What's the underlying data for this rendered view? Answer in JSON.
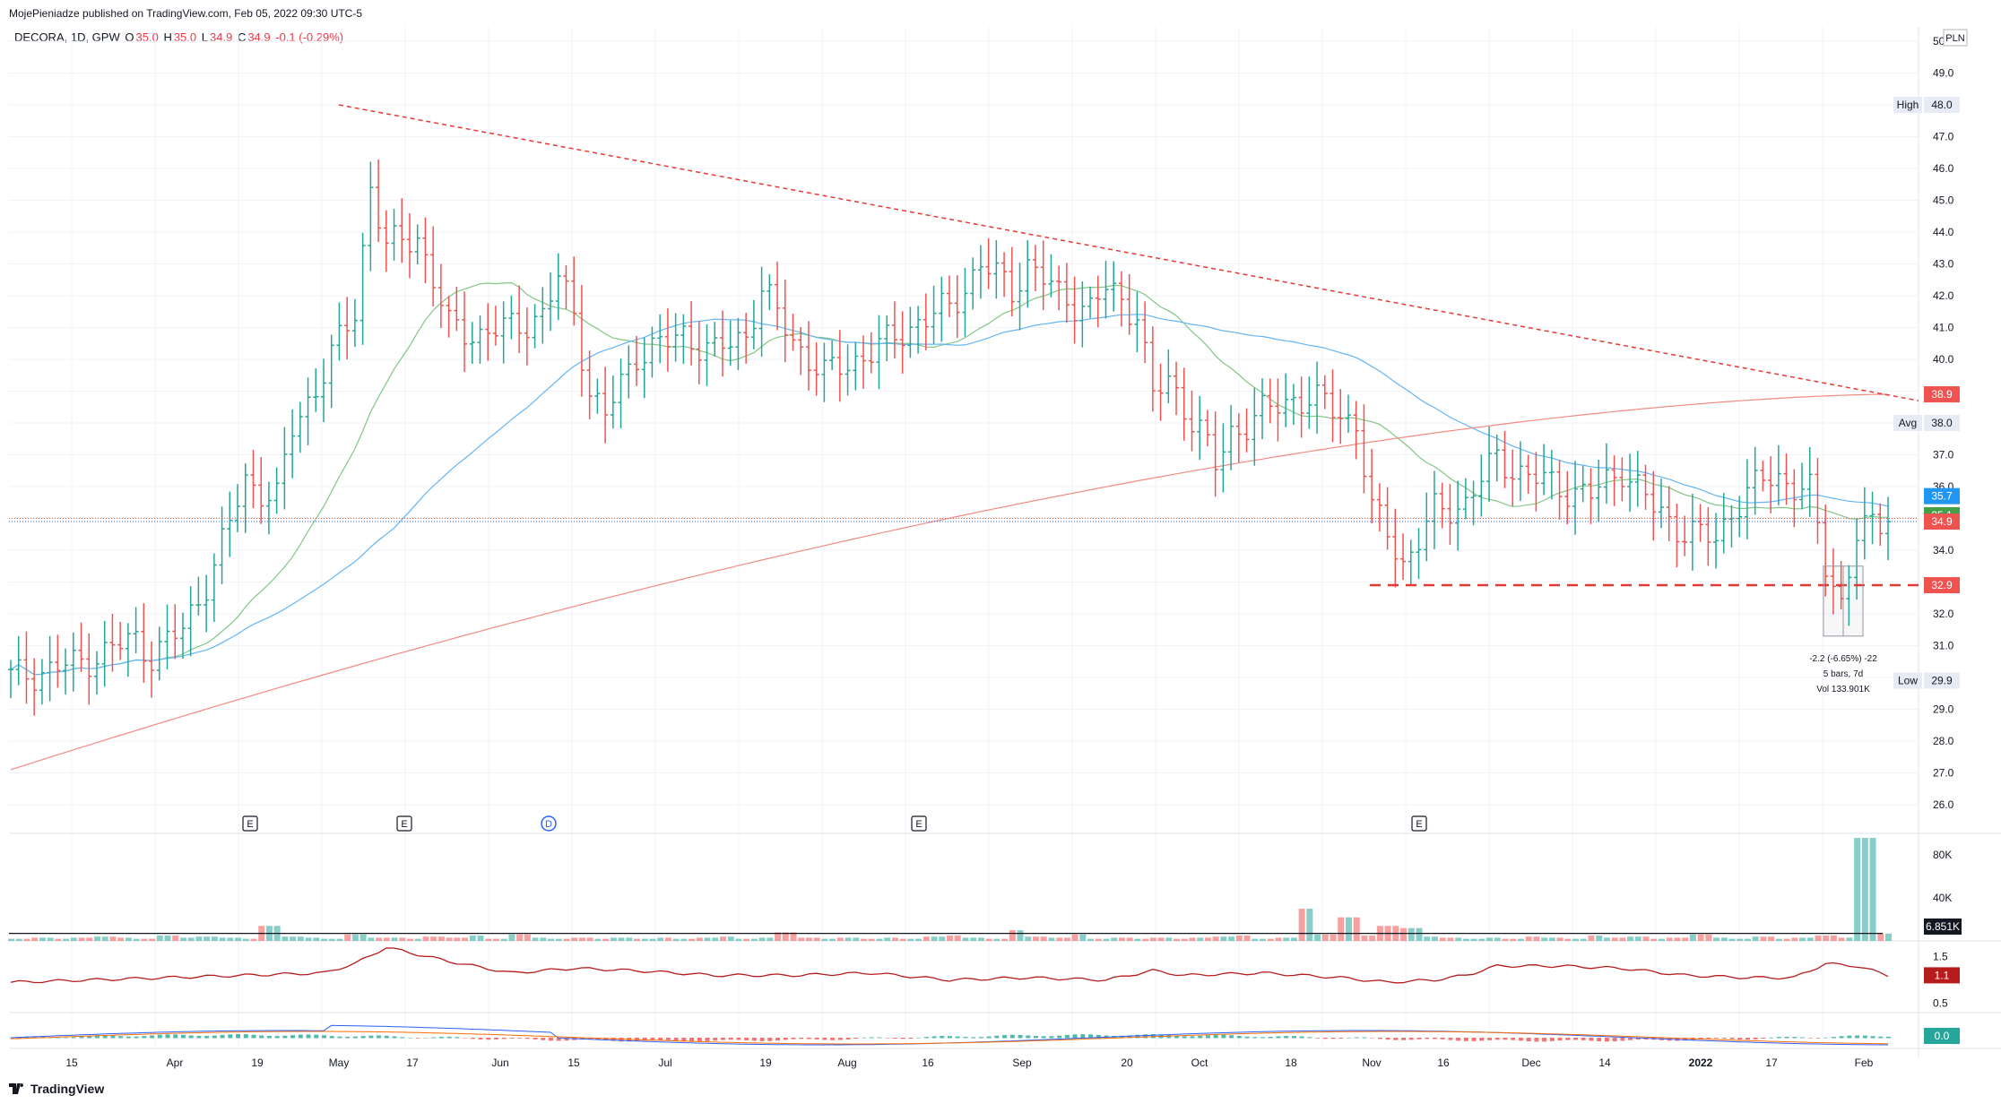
{
  "header": {
    "published": "MojePieniadze published on TradingView.com, Feb 05, 2022 09:30 UTC-5"
  },
  "legend": {
    "symbol": "DECORA, 1D, GPW",
    "o_label": "O",
    "o_value": "35.0",
    "h_label": "H",
    "h_value": "35.0",
    "l_label": "L",
    "l_value": "34.9",
    "c_label": "C",
    "c_value": "34.9",
    "change": "-0.1 (-0.29%)"
  },
  "currency": "PLN",
  "footer": {
    "brand": "TradingView"
  },
  "colors": {
    "up": "#26a69a",
    "down": "#ef5350",
    "sma_short": "#81c784",
    "sma_mid": "#64b5f6",
    "sma_long": "#f28b82",
    "trendline": "#e53935",
    "rsi_line": "#b71c1c",
    "grid": "#f0f3fa"
  },
  "price_scale": {
    "ticks": [
      "26.0",
      "27.0",
      "28.0",
      "29.0",
      "30.0",
      "31.0",
      "32.0",
      "33.0",
      "34.0",
      "35.0",
      "36.0",
      "37.0",
      "38.0",
      "39.0",
      "40.0",
      "41.0",
      "42.0",
      "43.0",
      "44.0",
      "45.0",
      "46.0",
      "47.0",
      "48.0",
      "49.0",
      "50"
    ],
    "labels": [
      {
        "text": "48.0",
        "tag": "High",
        "value": 48.0,
        "style": "plain"
      },
      {
        "text": "38.9",
        "value": 38.9,
        "style": "red"
      },
      {
        "text": "38.0",
        "tag": "Avg",
        "value": 38.0,
        "style": "plain"
      },
      {
        "text": "35.7",
        "value": 35.7,
        "style": "blue"
      },
      {
        "text": "35.1",
        "value": 35.1,
        "style": "green"
      },
      {
        "text": "34.9",
        "value": 34.9,
        "style": "red"
      },
      {
        "text": "32.9",
        "value": 32.9,
        "style": "red"
      },
      {
        "text": "29.9",
        "tag": "Low",
        "value": 29.9,
        "style": "plain"
      }
    ]
  },
  "volume_scale": {
    "ticks": [
      "40K",
      "80K"
    ],
    "current": "6.851K"
  },
  "indicator1_scale": {
    "ticks": [
      "1.5",
      "0.5"
    ],
    "current": "1.1"
  },
  "indicator2_scale": {
    "current": "0.0"
  },
  "time_axis": [
    "15",
    "Apr",
    "19",
    "May",
    "17",
    "Jun",
    "15",
    "Jul",
    "19",
    "Aug",
    "16",
    "Sep",
    "20",
    "Oct",
    "18",
    "Nov",
    "16",
    "Dec",
    "14",
    "2022",
    "17",
    "Feb"
  ],
  "events": [
    {
      "label": "E",
      "type": "earnings"
    },
    {
      "label": "E",
      "type": "earnings"
    },
    {
      "label": "D",
      "type": "dividend"
    },
    {
      "label": "E",
      "type": "earnings"
    },
    {
      "label": "E",
      "type": "earnings"
    }
  ],
  "measure": {
    "line1": "-2.2 (-6.65%) -22",
    "line2": "5 bars, 7d",
    "line3": "Vol 133.901K"
  },
  "chart_data": {
    "type": "ohlc",
    "symbol": "DECORA",
    "interval": "1D",
    "last": 34.9,
    "high": 48.0,
    "low": 29.9,
    "avg": 38.0,
    "support_level": 32.9,
    "sma_values": {
      "short": 35.1,
      "mid": 35.7,
      "long": 38.9
    },
    "ylim": [
      25.5,
      50.5
    ],
    "close_path": [
      [
        0,
        30.0
      ],
      [
        8,
        30.4
      ],
      [
        16,
        31.2
      ],
      [
        18,
        30.7
      ],
      [
        22,
        31.5
      ],
      [
        26,
        33.5
      ],
      [
        30,
        36.2
      ],
      [
        34,
        35.6
      ],
      [
        36,
        37.8
      ],
      [
        40,
        39.6
      ],
      [
        44,
        41.5
      ],
      [
        46,
        45.5
      ],
      [
        48,
        43.5
      ],
      [
        52,
        43.9
      ],
      [
        54,
        42.5
      ],
      [
        56,
        41.0
      ],
      [
        60,
        40.8
      ],
      [
        64,
        41.0
      ],
      [
        68,
        41.4
      ],
      [
        70,
        42.5
      ],
      [
        72,
        41.5
      ],
      [
        74,
        39.0
      ],
      [
        76,
        38.2
      ],
      [
        80,
        40.2
      ],
      [
        84,
        40.5
      ],
      [
        86,
        40.8
      ],
      [
        90,
        40.2
      ],
      [
        94,
        40.8
      ],
      [
        96,
        42.2
      ],
      [
        100,
        40.6
      ],
      [
        104,
        39.5
      ],
      [
        108,
        40.0
      ],
      [
        112,
        40.5
      ],
      [
        116,
        41.2
      ],
      [
        120,
        41.6
      ],
      [
        124,
        43.0
      ],
      [
        128,
        42.2
      ],
      [
        130,
        43.0
      ],
      [
        134,
        42.0
      ],
      [
        138,
        41.6
      ],
      [
        140,
        42.2
      ],
      [
        144,
        41.5
      ],
      [
        146,
        38.8
      ],
      [
        148,
        39.3
      ],
      [
        152,
        37.8
      ],
      [
        154,
        36.6
      ],
      [
        156,
        37.7
      ],
      [
        160,
        38.3
      ],
      [
        164,
        38.8
      ],
      [
        168,
        38.6
      ],
      [
        172,
        38.0
      ],
      [
        174,
        35.2
      ],
      [
        176,
        34.6
      ],
      [
        178,
        33.6
      ],
      [
        180,
        34.3
      ],
      [
        182,
        35.2
      ],
      [
        186,
        35.5
      ],
      [
        190,
        36.9
      ],
      [
        194,
        36.3
      ],
      [
        198,
        36.0
      ],
      [
        202,
        35.7
      ],
      [
        206,
        36.6
      ],
      [
        210,
        35.3
      ],
      [
        214,
        34.6
      ],
      [
        218,
        34.3
      ],
      [
        220,
        35.3
      ],
      [
        224,
        36.2
      ],
      [
        226,
        36.3
      ],
      [
        230,
        35.8
      ],
      [
        232,
        33.5
      ],
      [
        234,
        32.4
      ],
      [
        236,
        34.5
      ],
      [
        240,
        34.9
      ]
    ],
    "volume_K": [
      2,
      3,
      2,
      3,
      4,
      3,
      2,
      5,
      3,
      4,
      3,
      2,
      14,
      4,
      3,
      2,
      6,
      3,
      3,
      2,
      4,
      3,
      5,
      2,
      6,
      3,
      2,
      3,
      2,
      3,
      2,
      3,
      2,
      3,
      4,
      2,
      3,
      8,
      3,
      2,
      3,
      2,
      3,
      2,
      4,
      5,
      3,
      2,
      10,
      4,
      3,
      6,
      2,
      3,
      2,
      3,
      2,
      3,
      4,
      5,
      2,
      3,
      30,
      6,
      22,
      5,
      14,
      12,
      4,
      3,
      2,
      3,
      2,
      4,
      3,
      2,
      5,
      3,
      4,
      2,
      3,
      6,
      3,
      2,
      4,
      2,
      3,
      5,
      3,
      96,
      6.851
    ],
    "rsi_like": [
      [
        0,
        0.95
      ],
      [
        20,
        1.05
      ],
      [
        40,
        1.15
      ],
      [
        44,
        1.35
      ],
      [
        48,
        1.7
      ],
      [
        56,
        1.4
      ],
      [
        64,
        1.15
      ],
      [
        72,
        1.25
      ],
      [
        80,
        1.2
      ],
      [
        90,
        1.1
      ],
      [
        100,
        1.1
      ],
      [
        110,
        1.15
      ],
      [
        120,
        1.0
      ],
      [
        130,
        1.05
      ],
      [
        140,
        1.0
      ],
      [
        146,
        1.2
      ],
      [
        150,
        1.1
      ],
      [
        160,
        1.15
      ],
      [
        170,
        1.05
      ],
      [
        176,
        0.95
      ],
      [
        182,
        1.0
      ],
      [
        186,
        1.1
      ],
      [
        190,
        1.3
      ],
      [
        198,
        1.3
      ],
      [
        206,
        1.25
      ],
      [
        214,
        1.1
      ],
      [
        222,
        1.05
      ],
      [
        228,
        1.05
      ],
      [
        232,
        1.35
      ],
      [
        236,
        1.3
      ],
      [
        240,
        1.1
      ]
    ]
  }
}
